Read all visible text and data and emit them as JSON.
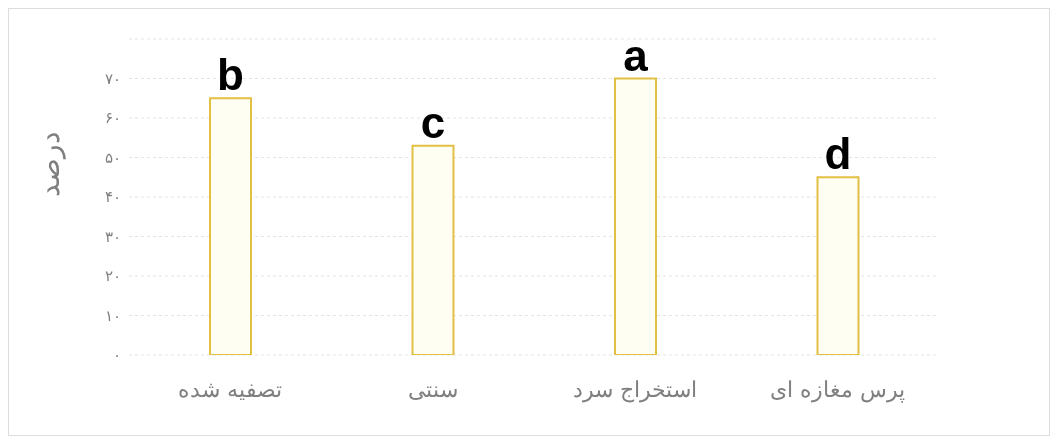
{
  "chart_data": {
    "type": "bar",
    "ylabel": "درصد",
    "categories": [
      "تصفیه شده",
      "سنتی",
      "استخراج سرد",
      "پرس مغازه ای"
    ],
    "values": [
      65,
      53,
      70,
      45
    ],
    "value_labels": [
      "b",
      "c",
      "a",
      "d"
    ],
    "color": "#fffef2",
    "ylim": [
      0,
      80
    ],
    "yticks": [
      {
        "value": 0,
        "label": "۰"
      },
      {
        "value": 10,
        "label": "۱۰"
      },
      {
        "value": 20,
        "label": "۲۰"
      },
      {
        "value": 30,
        "label": "۳۰"
      },
      {
        "value": 40,
        "label": "۴۰"
      },
      {
        "value": 50,
        "label": "۵۰"
      },
      {
        "value": 60,
        "label": "۶۰"
      },
      {
        "value": 70,
        "label": "۷۰"
      },
      {
        "value": 80,
        "label": null
      }
    ],
    "grid": "y"
  }
}
